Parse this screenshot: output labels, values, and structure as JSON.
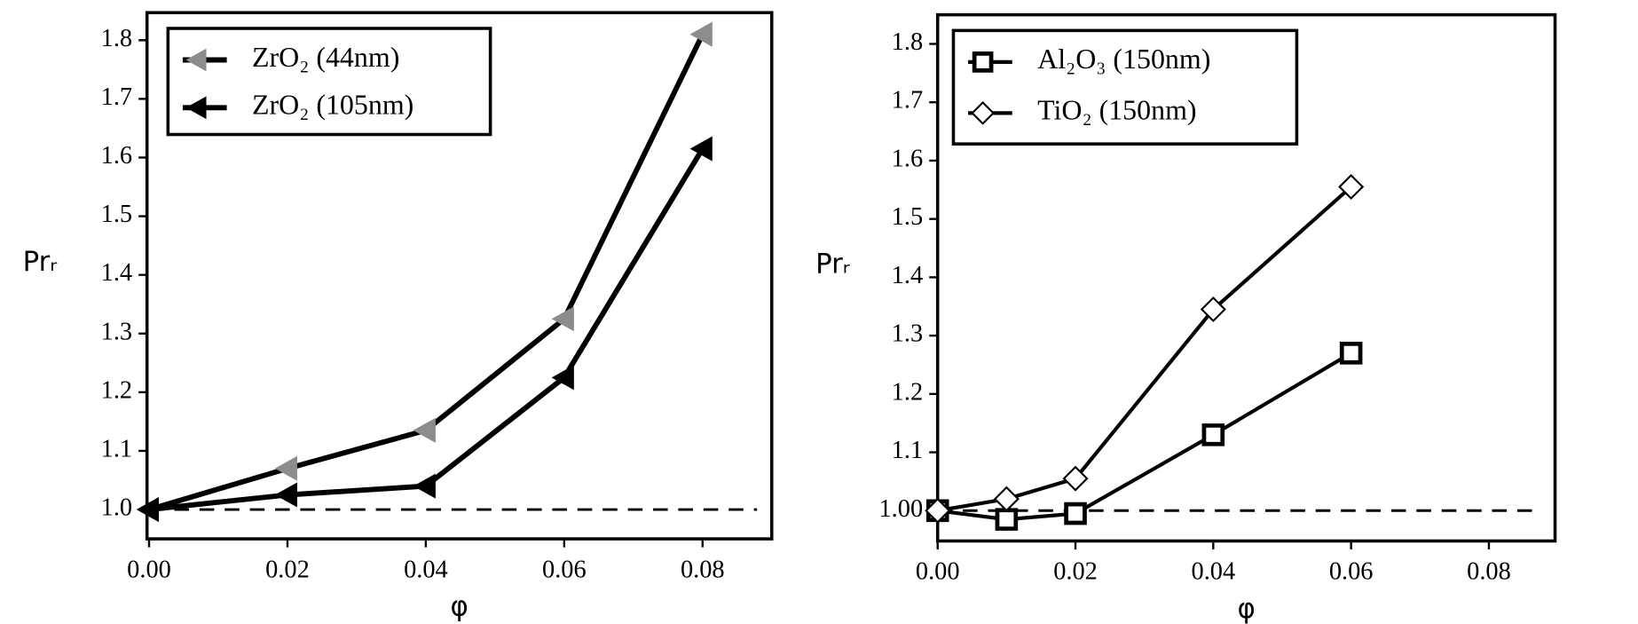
{
  "chart_data": [
    {
      "type": "line",
      "x_label": "φ",
      "y_label": "Prᵣ",
      "xlim": [
        -0.0003,
        0.09
      ],
      "ylim": [
        0.95,
        1.847
      ],
      "xticks": [
        {
          "value": 0,
          "label": "0.00"
        },
        0.02,
        0.04,
        0.06,
        0.08
      ],
      "yticks": [
        {
          "value": 1,
          "label": "1.0"
        },
        1.1,
        1.2,
        1.3,
        1.4,
        1.5,
        1.6,
        1.7,
        1.8
      ],
      "reference_line": 1,
      "legend": "upper left",
      "series": [
        {
          "name": "ZrO₂ (44nm)",
          "color": "#8c8c8c",
          "marker": "triangle-left",
          "x": [
            0,
            0.02,
            0.04,
            0.06,
            0.08
          ],
          "values": [
            1.0,
            1.07,
            1.135,
            1.325,
            1.81
          ]
        },
        {
          "name": "ZrO₂ (105nm)",
          "color": "#000000",
          "marker": "triangle-left",
          "x": [
            0,
            0.02,
            0.04,
            0.06,
            0.08
          ],
          "values": [
            1.0,
            1.025,
            1.04,
            1.225,
            1.615
          ]
        }
      ]
    },
    {
      "type": "line",
      "x_label": "φ",
      "y_label": "Prᵣ",
      "xlim": [
        0,
        0.0896
      ],
      "ylim": [
        0.948,
        1.85
      ],
      "xticks": [
        {
          "value": 0,
          "label": "0.00"
        },
        0.02,
        0.04,
        0.06,
        0.08
      ],
      "yticks": [
        {
          "value": 1,
          "label": "1.00"
        },
        1.1,
        1.2,
        1.3,
        1.4,
        1.5,
        1.6,
        1.7,
        1.8
      ],
      "reference_line": 1,
      "legend": "upper left",
      "series": [
        {
          "name": "Al₂O₃ (150nm)",
          "color": "#000000",
          "marker": "square",
          "x": [
            0,
            0.01,
            0.02,
            0.04,
            0.06
          ],
          "values": [
            1.0,
            0.985,
            0.995,
            1.13,
            1.27
          ]
        },
        {
          "name": "TiO₂ (150nm)",
          "color": "#000000",
          "marker": "diamond",
          "x": [
            0,
            0.01,
            0.02,
            0.04,
            0.06
          ],
          "values": [
            1.0,
            1.02,
            1.055,
            1.345,
            1.555
          ]
        }
      ]
    }
  ]
}
